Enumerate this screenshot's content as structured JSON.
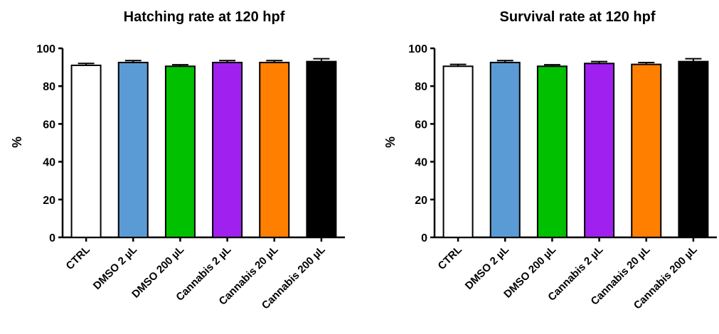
{
  "chart_data": [
    {
      "type": "bar",
      "title": "Hatching rate at 120 hpf",
      "xlabel": "",
      "ylabel": "%",
      "ylim": [
        0,
        100
      ],
      "yticks": [
        "0",
        "20",
        "40",
        "60",
        "80",
        "100"
      ],
      "grid": false,
      "categories": [
        "CTRL",
        "DMSO 2 µL",
        "DMSO 200 µL",
        "Cannabis 2 µL",
        "Cannabis 20 µL",
        "Cannabis 200 µL"
      ],
      "values": [
        91,
        92.5,
        90.5,
        92.5,
        92.5,
        93
      ],
      "errors": [
        1,
        1,
        0.8,
        1,
        1,
        1.5
      ],
      "colors": [
        "#ffffff",
        "#5b9bd5",
        "#00c000",
        "#a020f0",
        "#ff7f00",
        "#000000"
      ]
    },
    {
      "type": "bar",
      "title": "Survival rate at 120 hpf",
      "xlabel": "",
      "ylabel": "%",
      "ylim": [
        0,
        100
      ],
      "yticks": [
        "0",
        "20",
        "40",
        "60",
        "80",
        "100"
      ],
      "grid": false,
      "categories": [
        "CTRL",
        "DMSO 2 µL",
        "DMSO 200 µL",
        "Cannabis 2 µL",
        "Cannabis 20 µL",
        "Cannabis 200 µL"
      ],
      "values": [
        90.5,
        92.5,
        90.5,
        92,
        91.5,
        93
      ],
      "errors": [
        1,
        1,
        0.8,
        1,
        1,
        1.5
      ],
      "colors": [
        "#ffffff",
        "#5b9bd5",
        "#00c000",
        "#a020f0",
        "#ff7f00",
        "#000000"
      ]
    }
  ]
}
